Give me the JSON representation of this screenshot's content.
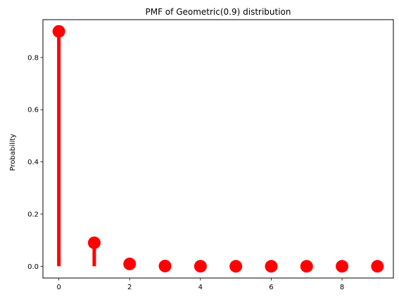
{
  "chart_data": {
    "type": "stem",
    "title": "PMF of Geometric(0.9) distribution",
    "xlabel": "",
    "ylabel": "Probability",
    "x": [
      0,
      1,
      2,
      3,
      4,
      5,
      6,
      7,
      8,
      9
    ],
    "y": [
      0.9,
      0.09,
      0.009,
      0.0009,
      9e-05,
      9e-06,
      9e-07,
      9e-08,
      9e-09,
      9e-10
    ],
    "xlim": [
      -0.45,
      9.45
    ],
    "ylim": [
      -0.045,
      0.945
    ],
    "xticks": [
      "0",
      "2",
      "4",
      "6",
      "8"
    ],
    "yticks": [
      "0.0",
      "0.2",
      "0.4",
      "0.6",
      "0.8"
    ],
    "grid": false,
    "legend": "none",
    "color": "#ff0000"
  }
}
